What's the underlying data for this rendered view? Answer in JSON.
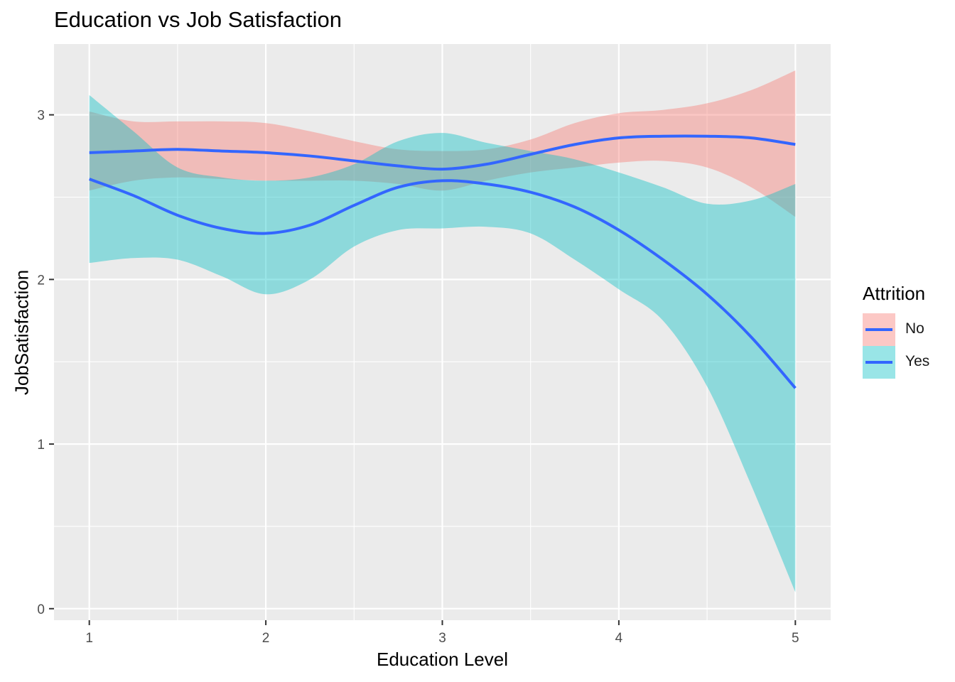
{
  "chart_data": {
    "type": "area",
    "title": "Education vs Job Satisfaction",
    "xlabel": "Education Level",
    "ylabel": "JobSatisfaction",
    "xlim": [
      0.8,
      5.2
    ],
    "ylim": [
      -0.07,
      3.43
    ],
    "x_ticks": [
      "1",
      "2",
      "3",
      "4",
      "5"
    ],
    "y_ticks": [
      "0",
      "1",
      "2",
      "3"
    ],
    "grid": true,
    "legend": {
      "title": "Attrition",
      "position": "right"
    },
    "line_color": "#3366FF",
    "series": [
      {
        "name": "No",
        "fill_color": "#F8766D",
        "x": [
          1.0,
          1.25,
          1.5,
          1.75,
          2.0,
          2.25,
          2.5,
          2.75,
          3.0,
          3.25,
          3.5,
          3.75,
          4.0,
          4.25,
          4.5,
          4.75,
          5.0
        ],
        "y": [
          2.77,
          2.78,
          2.79,
          2.78,
          2.77,
          2.75,
          2.72,
          2.69,
          2.67,
          2.7,
          2.76,
          2.82,
          2.86,
          2.87,
          2.87,
          2.86,
          2.82
        ],
        "lower": [
          2.54,
          2.6,
          2.62,
          2.61,
          2.6,
          2.6,
          2.6,
          2.58,
          2.54,
          2.6,
          2.65,
          2.68,
          2.71,
          2.72,
          2.68,
          2.56,
          2.38
        ],
        "upper": [
          3.02,
          2.96,
          2.96,
          2.96,
          2.95,
          2.9,
          2.84,
          2.79,
          2.78,
          2.79,
          2.85,
          2.95,
          3.01,
          3.03,
          3.07,
          3.15,
          3.27
        ]
      },
      {
        "name": "Yes",
        "fill_color": "#00BFC4",
        "x": [
          1.0,
          1.25,
          1.5,
          1.75,
          2.0,
          2.25,
          2.5,
          2.75,
          3.0,
          3.25,
          3.5,
          3.75,
          4.0,
          4.25,
          4.5,
          4.75,
          5.0
        ],
        "y": [
          2.61,
          2.51,
          2.39,
          2.31,
          2.28,
          2.33,
          2.45,
          2.56,
          2.6,
          2.58,
          2.53,
          2.44,
          2.3,
          2.12,
          1.91,
          1.65,
          1.34
        ],
        "lower": [
          2.1,
          2.13,
          2.12,
          2.02,
          1.91,
          2.0,
          2.2,
          2.3,
          2.31,
          2.32,
          2.28,
          2.12,
          1.94,
          1.75,
          1.35,
          0.75,
          0.1
        ],
        "upper": [
          3.12,
          2.9,
          2.68,
          2.62,
          2.6,
          2.62,
          2.7,
          2.84,
          2.89,
          2.83,
          2.78,
          2.73,
          2.65,
          2.56,
          2.46,
          2.48,
          2.58
        ]
      }
    ]
  }
}
